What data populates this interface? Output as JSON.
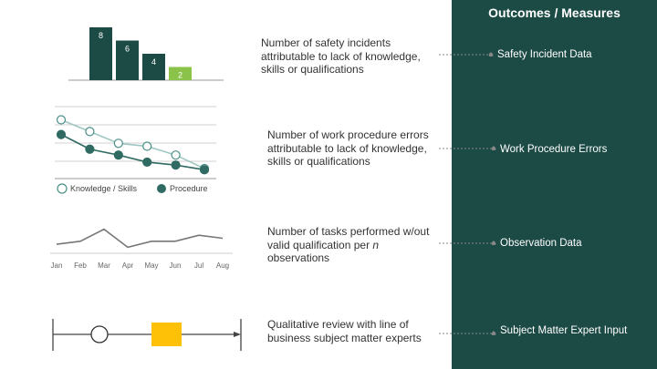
{
  "panel": {
    "title": "Outcomes / Measures",
    "background": "#1c4a45",
    "measures": [
      "Safety Incident Data",
      "Work Procedure Errors",
      "Observation Data",
      "Subject Matter Expert Input"
    ]
  },
  "descriptions": {
    "d1": "Number of safety incidents attributable to lack of knowledge, skills or qualifications",
    "d2": "Number of work procedure errors attributable to lack of knowledge, skills or qualifications",
    "d3_prefix": "Number of tasks performed w/out valid qualification per ",
    "d3_italic": "n",
    "d3_suffix": " observations",
    "d4": "Qualitative review with line of business subject matter experts"
  },
  "chart_data": [
    {
      "type": "bar",
      "values": [
        8,
        6,
        4,
        2
      ],
      "labels": [
        "8",
        "6",
        "4",
        "2"
      ],
      "colors": [
        "#1c4a45",
        "#1c4a45",
        "#1c4a45",
        "#8bc34a"
      ]
    },
    {
      "type": "line",
      "x": [
        1,
        2,
        3,
        4,
        5,
        6
      ],
      "ylim": [
        0,
        12
      ],
      "series": [
        {
          "name": "Knowledge / Skills",
          "values": [
            10,
            8,
            6,
            5.5,
            4,
            1.7
          ],
          "marker": "hollow"
        },
        {
          "name": "Procedure",
          "values": [
            7.5,
            5,
            4,
            2.8,
            2.3,
            1.5
          ],
          "marker": "filled"
        }
      ]
    },
    {
      "type": "line",
      "categories": [
        "Jan",
        "Feb",
        "Mar",
        "Apr",
        "May",
        "Jun",
        "Jul",
        "Aug"
      ],
      "values": [
        3,
        4,
        8,
        2,
        4,
        4,
        6,
        5
      ],
      "ylim": [
        0,
        10
      ]
    }
  ],
  "timeline": {
    "accent": "#ffc107"
  }
}
